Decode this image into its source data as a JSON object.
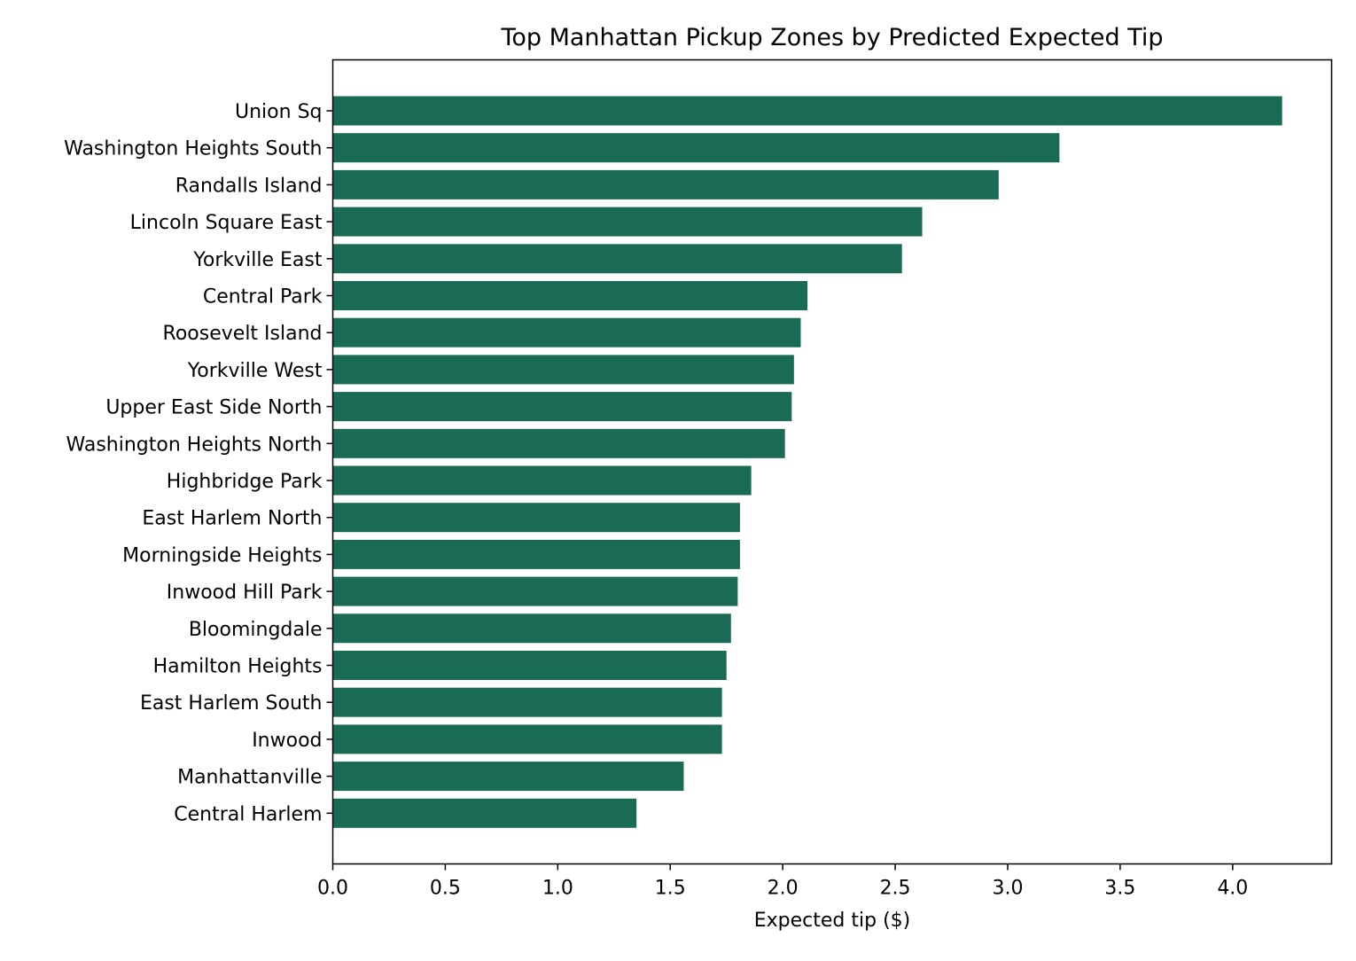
{
  "chart_data": {
    "type": "bar",
    "orientation": "horizontal",
    "title": "Top Manhattan Pickup Zones by Predicted Expected Tip",
    "xlabel": "Expected tip ($)",
    "ylabel": "",
    "xlim": [
      0,
      4.44
    ],
    "x_ticks": [
      0.0,
      0.5,
      1.0,
      1.5,
      2.0,
      2.5,
      3.0,
      3.5,
      4.0
    ],
    "x_tick_labels": [
      "0.0",
      "0.5",
      "1.0",
      "1.5",
      "2.0",
      "2.5",
      "3.0",
      "3.5",
      "4.0"
    ],
    "grid": false,
    "bar_color": "#1a6b56",
    "categories": [
      "Union Sq",
      "Washington Heights South",
      "Randalls Island",
      "Lincoln Square East",
      "Yorkville East",
      "Central Park",
      "Roosevelt Island",
      "Yorkville West",
      "Upper East Side North",
      "Washington Heights North",
      "Highbridge Park",
      "East Harlem North",
      "Morningside Heights",
      "Inwood Hill Park",
      "Bloomingdale",
      "Hamilton Heights",
      "East Harlem South",
      "Inwood",
      "Manhattanville",
      "Central Harlem"
    ],
    "values": [
      4.22,
      3.23,
      2.96,
      2.62,
      2.53,
      2.11,
      2.08,
      2.05,
      2.04,
      2.01,
      1.86,
      1.81,
      1.81,
      1.8,
      1.77,
      1.75,
      1.73,
      1.73,
      1.56,
      1.35
    ]
  }
}
